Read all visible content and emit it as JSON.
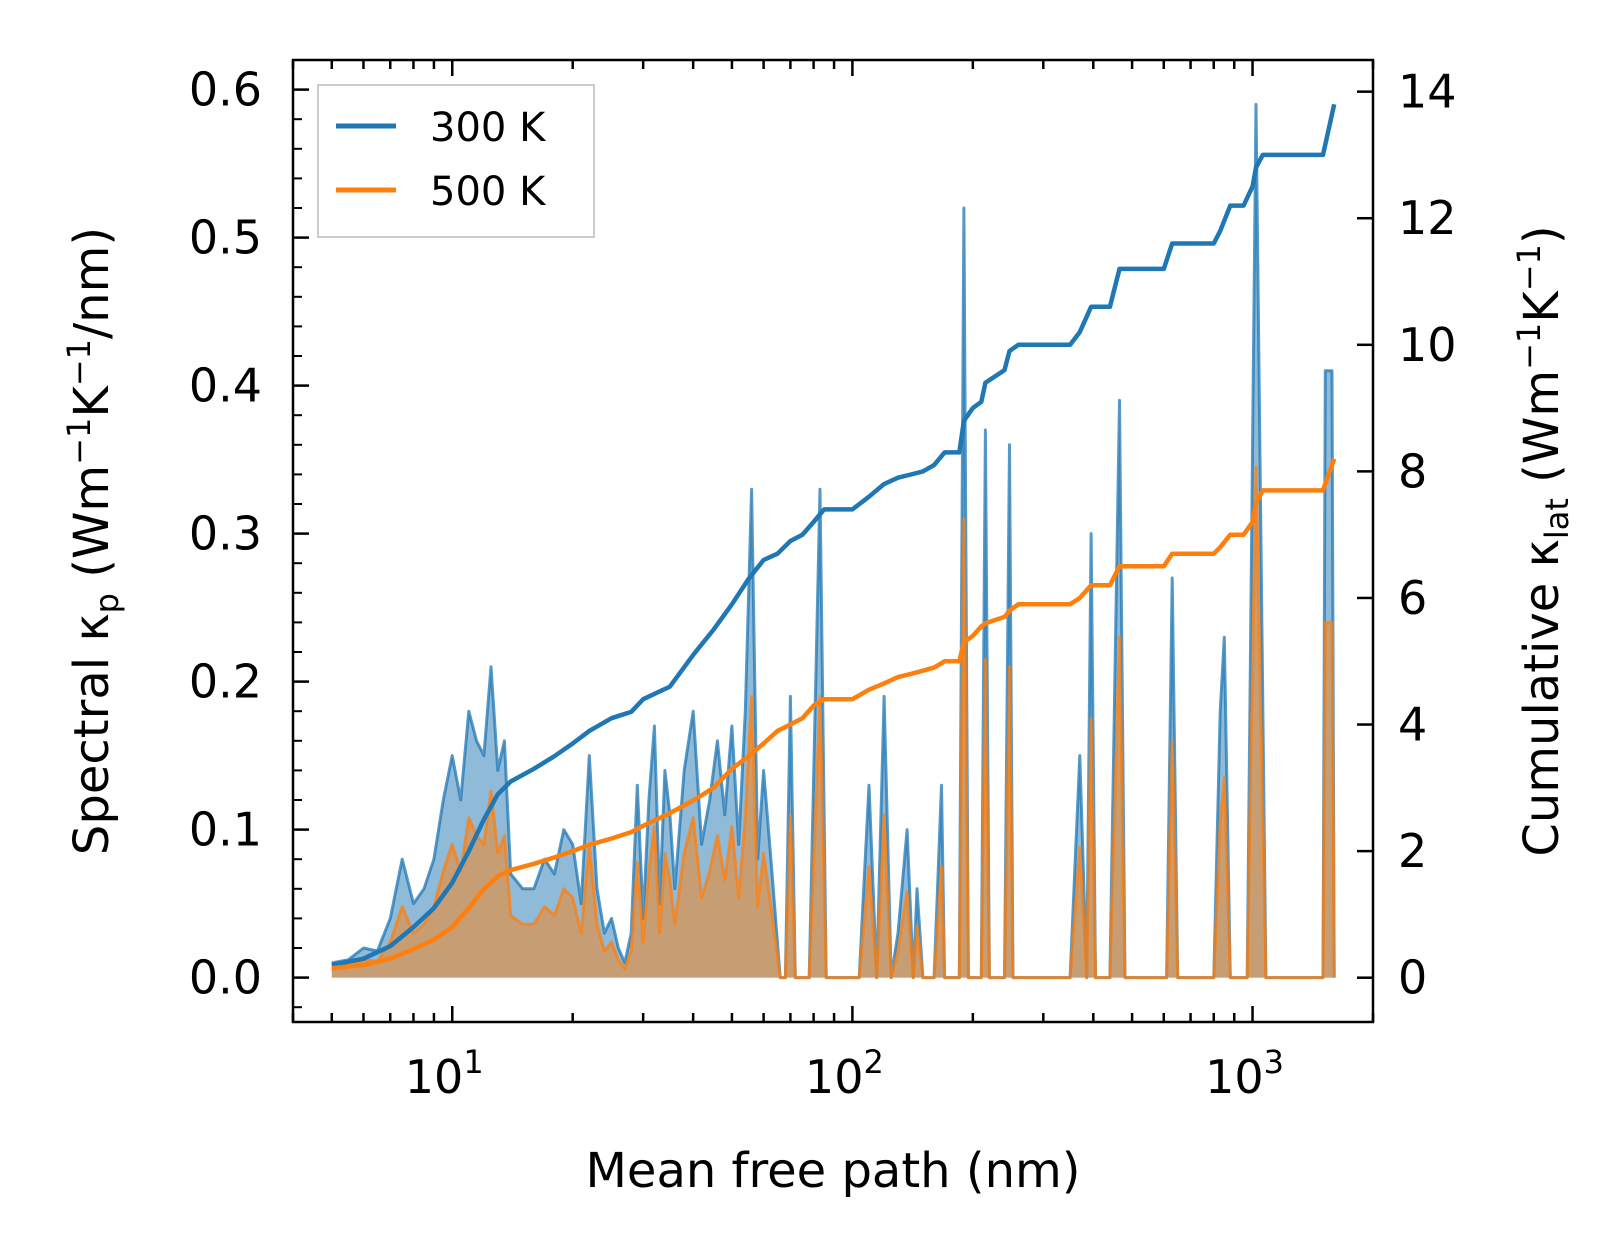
{
  "chart_data": {
    "type": "line",
    "xscale": "log",
    "xlabel": "Mean free path (nm)",
    "ylabel_left": {
      "main": "Spectral κ",
      "sub": "p",
      "unit_open": " (Wm",
      "sup1": "−1",
      "mid": "K",
      "sup2": "−1",
      "unit_close": "/nm)"
    },
    "ylabel_right": {
      "main": "Cumulative κ",
      "sub": "lat",
      "unit_open": " (Wm",
      "sup1": "−1",
      "mid": "K",
      "sup2": "−1",
      "unit_close": ")"
    },
    "xlim": [
      4.0,
      2000
    ],
    "ylim_left": [
      -0.03,
      0.62
    ],
    "ylim_right": [
      -0.7,
      14.5
    ],
    "x_ticks": [
      {
        "value": 10,
        "base": "10",
        "exp": "1"
      },
      {
        "value": 100,
        "base": "10",
        "exp": "2"
      },
      {
        "value": 1000,
        "base": "10",
        "exp": "3"
      }
    ],
    "y_ticks_left": [
      "0.0",
      "0.1",
      "0.2",
      "0.3",
      "0.4",
      "0.5",
      "0.6"
    ],
    "y_ticks_right": [
      "0",
      "2",
      "4",
      "6",
      "8",
      "10",
      "12",
      "14"
    ],
    "legend": {
      "position": "top-left",
      "entries": [
        {
          "label": "300 K",
          "color": "#1f77b4"
        },
        {
          "label": "500 K",
          "color": "#ff7f0e"
        }
      ]
    },
    "spectral_300K": [
      [
        5,
        0.01
      ],
      [
        5.5,
        0.012
      ],
      [
        6,
        0.02
      ],
      [
        6.5,
        0.018
      ],
      [
        7,
        0.04
      ],
      [
        7.5,
        0.08
      ],
      [
        8,
        0.05
      ],
      [
        8.5,
        0.06
      ],
      [
        9,
        0.08
      ],
      [
        9.5,
        0.12
      ],
      [
        10,
        0.15
      ],
      [
        10.5,
        0.12
      ],
      [
        11,
        0.18
      ],
      [
        11.5,
        0.16
      ],
      [
        12,
        0.15
      ],
      [
        12.5,
        0.21
      ],
      [
        13,
        0.14
      ],
      [
        13.5,
        0.16
      ],
      [
        14,
        0.07
      ],
      [
        15,
        0.06
      ],
      [
        16,
        0.06
      ],
      [
        17,
        0.08
      ],
      [
        18,
        0.07
      ],
      [
        19,
        0.1
      ],
      [
        20,
        0.09
      ],
      [
        21,
        0.05
      ],
      [
        22,
        0.15
      ],
      [
        23,
        0.06
      ],
      [
        24,
        0.03
      ],
      [
        25,
        0.04
      ],
      [
        26,
        0.02
      ],
      [
        27,
        0.01
      ],
      [
        28,
        0.03
      ],
      [
        29,
        0.13
      ],
      [
        30,
        0.04
      ],
      [
        31,
        0.12
      ],
      [
        32,
        0.17
      ],
      [
        33,
        0.05
      ],
      [
        34,
        0.14
      ],
      [
        35,
        0.11
      ],
      [
        36,
        0.06
      ],
      [
        38,
        0.14
      ],
      [
        40,
        0.18
      ],
      [
        42,
        0.09
      ],
      [
        44,
        0.12
      ],
      [
        46,
        0.16
      ],
      [
        48,
        0.11
      ],
      [
        50,
        0.17
      ],
      [
        52,
        0.09
      ],
      [
        54,
        0.18
      ],
      [
        56,
        0.33
      ],
      [
        58,
        0.08
      ],
      [
        60,
        0.14
      ],
      [
        63,
        0.07
      ],
      [
        66,
        0.0
      ],
      [
        68,
        0.0
      ],
      [
        70,
        0.19
      ],
      [
        72,
        0.0
      ],
      [
        74,
        0.0
      ],
      [
        78,
        0.0
      ],
      [
        83,
        0.33
      ],
      [
        86,
        0.0
      ],
      [
        95,
        0.0
      ],
      [
        100,
        0.0
      ],
      [
        104,
        0.0
      ],
      [
        110,
        0.13
      ],
      [
        115,
        0.0
      ],
      [
        120,
        0.19
      ],
      [
        125,
        0.0
      ],
      [
        130,
        0.03
      ],
      [
        137,
        0.1
      ],
      [
        142,
        0.0
      ],
      [
        145,
        0.06
      ],
      [
        150,
        0.0
      ],
      [
        160,
        0.0
      ],
      [
        167,
        0.13
      ],
      [
        170,
        0.0
      ],
      [
        185,
        0.0
      ],
      [
        190,
        0.52
      ],
      [
        195,
        0.0
      ],
      [
        210,
        0.0
      ],
      [
        215,
        0.37
      ],
      [
        220,
        0.0
      ],
      [
        240,
        0.0
      ],
      [
        247,
        0.36
      ],
      [
        252,
        0.0
      ],
      [
        270,
        0.0
      ],
      [
        350,
        0.0
      ],
      [
        370,
        0.15
      ],
      [
        385,
        0.0
      ],
      [
        395,
        0.3
      ],
      [
        405,
        0.0
      ],
      [
        440,
        0.0
      ],
      [
        465,
        0.39
      ],
      [
        480,
        0.0
      ],
      [
        610,
        0.0
      ],
      [
        630,
        0.27
      ],
      [
        650,
        0.0
      ],
      [
        800,
        0.0
      ],
      [
        830,
        0.18
      ],
      [
        850,
        0.23
      ],
      [
        880,
        0.0
      ],
      [
        970,
        0.0
      ],
      [
        1020,
        0.59
      ],
      [
        1080,
        0.0
      ],
      [
        1500,
        0.0
      ],
      [
        1520,
        0.41
      ],
      [
        1580,
        0.41
      ],
      [
        1600,
        0.0
      ]
    ],
    "spectral_500K": [
      [
        5,
        0.006
      ],
      [
        5.5,
        0.007
      ],
      [
        6,
        0.012
      ],
      [
        6.5,
        0.011
      ],
      [
        7,
        0.024
      ],
      [
        7.5,
        0.048
      ],
      [
        8,
        0.03
      ],
      [
        8.5,
        0.036
      ],
      [
        9,
        0.048
      ],
      [
        9.5,
        0.072
      ],
      [
        10,
        0.09
      ],
      [
        10.5,
        0.072
      ],
      [
        11,
        0.108
      ],
      [
        11.5,
        0.096
      ],
      [
        12,
        0.09
      ],
      [
        12.5,
        0.126
      ],
      [
        13,
        0.084
      ],
      [
        13.5,
        0.096
      ],
      [
        14,
        0.042
      ],
      [
        15,
        0.036
      ],
      [
        16,
        0.036
      ],
      [
        17,
        0.048
      ],
      [
        18,
        0.042
      ],
      [
        19,
        0.06
      ],
      [
        20,
        0.054
      ],
      [
        21,
        0.03
      ],
      [
        22,
        0.09
      ],
      [
        23,
        0.036
      ],
      [
        24,
        0.018
      ],
      [
        25,
        0.024
      ],
      [
        26,
        0.012
      ],
      [
        27,
        0.006
      ],
      [
        28,
        0.018
      ],
      [
        29,
        0.078
      ],
      [
        30,
        0.024
      ],
      [
        31,
        0.072
      ],
      [
        32,
        0.102
      ],
      [
        33,
        0.03
      ],
      [
        34,
        0.084
      ],
      [
        35,
        0.066
      ],
      [
        36,
        0.036
      ],
      [
        38,
        0.084
      ],
      [
        40,
        0.108
      ],
      [
        42,
        0.054
      ],
      [
        44,
        0.072
      ],
      [
        46,
        0.096
      ],
      [
        48,
        0.066
      ],
      [
        50,
        0.102
      ],
      [
        52,
        0.054
      ],
      [
        54,
        0.108
      ],
      [
        56,
        0.19
      ],
      [
        58,
        0.048
      ],
      [
        60,
        0.084
      ],
      [
        63,
        0.042
      ],
      [
        66,
        0.0
      ],
      [
        68,
        0.0
      ],
      [
        70,
        0.11
      ],
      [
        72,
        0.0
      ],
      [
        74,
        0.0
      ],
      [
        78,
        0.0
      ],
      [
        83,
        0.19
      ],
      [
        86,
        0.0
      ],
      [
        95,
        0.0
      ],
      [
        100,
        0.0
      ],
      [
        104,
        0.0
      ],
      [
        110,
        0.075
      ],
      [
        115,
        0.0
      ],
      [
        120,
        0.11
      ],
      [
        125,
        0.0
      ],
      [
        130,
        0.018
      ],
      [
        137,
        0.058
      ],
      [
        142,
        0.0
      ],
      [
        145,
        0.035
      ],
      [
        150,
        0.0
      ],
      [
        160,
        0.0
      ],
      [
        167,
        0.075
      ],
      [
        170,
        0.0
      ],
      [
        185,
        0.0
      ],
      [
        190,
        0.31
      ],
      [
        195,
        0.0
      ],
      [
        210,
        0.0
      ],
      [
        215,
        0.215
      ],
      [
        220,
        0.0
      ],
      [
        240,
        0.0
      ],
      [
        247,
        0.21
      ],
      [
        252,
        0.0
      ],
      [
        270,
        0.0
      ],
      [
        350,
        0.0
      ],
      [
        370,
        0.088
      ],
      [
        385,
        0.0
      ],
      [
        395,
        0.175
      ],
      [
        405,
        0.0
      ],
      [
        440,
        0.0
      ],
      [
        465,
        0.23
      ],
      [
        480,
        0.0
      ],
      [
        610,
        0.0
      ],
      [
        630,
        0.16
      ],
      [
        650,
        0.0
      ],
      [
        800,
        0.0
      ],
      [
        830,
        0.105
      ],
      [
        850,
        0.135
      ],
      [
        880,
        0.0
      ],
      [
        970,
        0.0
      ],
      [
        1020,
        0.345
      ],
      [
        1080,
        0.0
      ],
      [
        1500,
        0.0
      ],
      [
        1520,
        0.24
      ],
      [
        1580,
        0.24
      ],
      [
        1600,
        0.0
      ]
    ],
    "cumulative_300K": [
      [
        5,
        0.2
      ],
      [
        6,
        0.3
      ],
      [
        7,
        0.5
      ],
      [
        8,
        0.8
      ],
      [
        9,
        1.1
      ],
      [
        10,
        1.5
      ],
      [
        11,
        2.0
      ],
      [
        12,
        2.5
      ],
      [
        13,
        2.9
      ],
      [
        14,
        3.1
      ],
      [
        16,
        3.3
      ],
      [
        18,
        3.5
      ],
      [
        20,
        3.7
      ],
      [
        22,
        3.9
      ],
      [
        25,
        4.1
      ],
      [
        28,
        4.2
      ],
      [
        30,
        4.4
      ],
      [
        35,
        4.6
      ],
      [
        40,
        5.1
      ],
      [
        45,
        5.5
      ],
      [
        50,
        5.9
      ],
      [
        55,
        6.3
      ],
      [
        60,
        6.6
      ],
      [
        65,
        6.7
      ],
      [
        70,
        6.9
      ],
      [
        75,
        7.0
      ],
      [
        80,
        7.2
      ],
      [
        85,
        7.4
      ],
      [
        100,
        7.4
      ],
      [
        110,
        7.6
      ],
      [
        120,
        7.8
      ],
      [
        130,
        7.9
      ],
      [
        140,
        7.95
      ],
      [
        150,
        8.0
      ],
      [
        160,
        8.1
      ],
      [
        170,
        8.3
      ],
      [
        185,
        8.3
      ],
      [
        190,
        8.8
      ],
      [
        200,
        9.0
      ],
      [
        210,
        9.1
      ],
      [
        215,
        9.4
      ],
      [
        240,
        9.6
      ],
      [
        247,
        9.9
      ],
      [
        260,
        10.0
      ],
      [
        350,
        10.0
      ],
      [
        370,
        10.2
      ],
      [
        395,
        10.6
      ],
      [
        440,
        10.6
      ],
      [
        465,
        11.2
      ],
      [
        500,
        11.2
      ],
      [
        600,
        11.2
      ],
      [
        630,
        11.6
      ],
      [
        800,
        11.6
      ],
      [
        830,
        11.8
      ],
      [
        880,
        12.2
      ],
      [
        950,
        12.2
      ],
      [
        1000,
        12.5
      ],
      [
        1020,
        12.8
      ],
      [
        1060,
        13.0
      ],
      [
        1500,
        13.0
      ],
      [
        1600,
        13.8
      ]
    ],
    "cumulative_500K": [
      [
        5,
        0.15
      ],
      [
        6,
        0.2
      ],
      [
        7,
        0.3
      ],
      [
        8,
        0.45
      ],
      [
        9,
        0.6
      ],
      [
        10,
        0.8
      ],
      [
        11,
        1.1
      ],
      [
        12,
        1.4
      ],
      [
        13,
        1.6
      ],
      [
        14,
        1.7
      ],
      [
        16,
        1.8
      ],
      [
        18,
        1.9
      ],
      [
        20,
        2.0
      ],
      [
        22,
        2.1
      ],
      [
        25,
        2.2
      ],
      [
        28,
        2.3
      ],
      [
        30,
        2.4
      ],
      [
        35,
        2.6
      ],
      [
        40,
        2.8
      ],
      [
        45,
        3.0
      ],
      [
        50,
        3.3
      ],
      [
        55,
        3.5
      ],
      [
        60,
        3.7
      ],
      [
        65,
        3.9
      ],
      [
        70,
        4.0
      ],
      [
        75,
        4.1
      ],
      [
        80,
        4.3
      ],
      [
        85,
        4.4
      ],
      [
        100,
        4.4
      ],
      [
        110,
        4.55
      ],
      [
        120,
        4.65
      ],
      [
        130,
        4.75
      ],
      [
        140,
        4.8
      ],
      [
        150,
        4.85
      ],
      [
        160,
        4.9
      ],
      [
        170,
        5.0
      ],
      [
        185,
        5.0
      ],
      [
        190,
        5.3
      ],
      [
        200,
        5.4
      ],
      [
        210,
        5.55
      ],
      [
        215,
        5.6
      ],
      [
        240,
        5.7
      ],
      [
        247,
        5.8
      ],
      [
        260,
        5.9
      ],
      [
        350,
        5.9
      ],
      [
        370,
        6.0
      ],
      [
        395,
        6.2
      ],
      [
        440,
        6.2
      ],
      [
        465,
        6.5
      ],
      [
        500,
        6.5
      ],
      [
        600,
        6.5
      ],
      [
        630,
        6.7
      ],
      [
        800,
        6.7
      ],
      [
        830,
        6.8
      ],
      [
        880,
        7.0
      ],
      [
        950,
        7.0
      ],
      [
        1000,
        7.2
      ],
      [
        1020,
        7.5
      ],
      [
        1060,
        7.7
      ],
      [
        1500,
        7.7
      ],
      [
        1600,
        8.2
      ]
    ]
  }
}
